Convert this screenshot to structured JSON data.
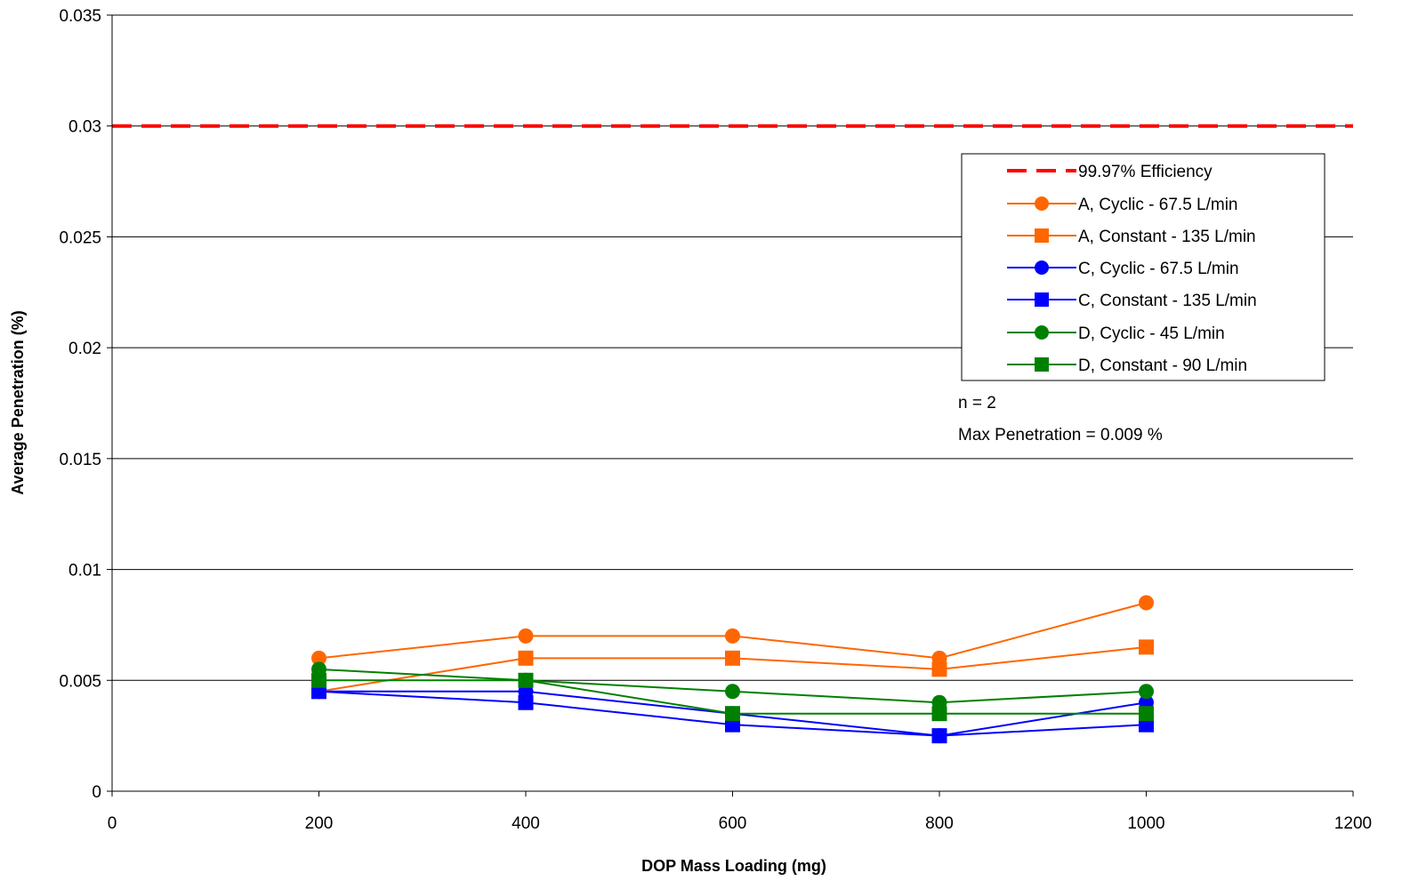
{
  "chart_data": {
    "type": "line",
    "title": "",
    "xlabel": "DOP Mass Loading (mg)",
    "ylabel": "Average Penetration (%)",
    "xlim": [
      0,
      1200
    ],
    "ylim": [
      0,
      0.035
    ],
    "xticks": [
      0,
      200,
      400,
      600,
      800,
      1000,
      1200
    ],
    "xtick_labels": [
      "0",
      "200",
      "400",
      "600",
      "800",
      "1000",
      "1200"
    ],
    "yticks": [
      0,
      0.005,
      0.01,
      0.015,
      0.02,
      0.025,
      0.03,
      0.035
    ],
    "ytick_labels": [
      "0",
      "0.005",
      "0.01",
      "0.015",
      "0.02",
      "0.025",
      "0.03",
      "0.035"
    ],
    "grid": "horizontal",
    "legend_position": "right",
    "reference_line": {
      "name": "99.97% Efficiency",
      "y": 0.03,
      "color": "#ff0000",
      "style": "dashed"
    },
    "x": [
      200,
      400,
      600,
      800,
      1000
    ],
    "series": [
      {
        "name": "A, Cyclic - 67.5 L/min",
        "color": "#ff6600",
        "marker": "circle",
        "values": [
          0.006,
          0.007,
          0.007,
          0.006,
          0.0085
        ]
      },
      {
        "name": "A, Constant - 135 L/min",
        "color": "#ff6600",
        "marker": "square",
        "values": [
          0.0045,
          0.006,
          0.006,
          0.0055,
          0.0065
        ]
      },
      {
        "name": "C, Cyclic - 67.5 L/min",
        "color": "#0000ff",
        "marker": "circle",
        "values": [
          0.0045,
          0.0045,
          0.0035,
          0.0025,
          0.004
        ]
      },
      {
        "name": "C, Constant - 135 L/min",
        "color": "#0000ff",
        "marker": "square",
        "values": [
          0.0045,
          0.004,
          0.003,
          0.0025,
          0.003
        ]
      },
      {
        "name": "D, Cyclic - 45 L/min",
        "color": "#008000",
        "marker": "circle",
        "values": [
          0.0055,
          0.005,
          0.0045,
          0.004,
          0.0045
        ]
      },
      {
        "name": "D, Constant - 90 L/min",
        "color": "#008000",
        "marker": "square",
        "values": [
          0.005,
          0.005,
          0.0035,
          0.0035,
          0.0035
        ]
      }
    ],
    "annotations": [
      "n = 2",
      "Max Penetration = 0.009 %"
    ]
  }
}
